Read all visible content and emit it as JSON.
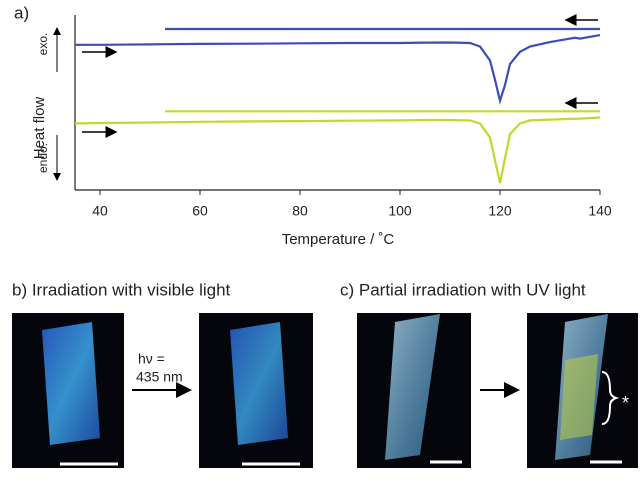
{
  "chart_data": {
    "type": "line",
    "panel_label": "a)",
    "x_label": "Temperature / ˚C",
    "y_label": "Heat flow",
    "annotations": [
      "exo.",
      "endo."
    ],
    "x": [
      35,
      40,
      50,
      53,
      60,
      70,
      80,
      90,
      100,
      105,
      110,
      114,
      116,
      118,
      119,
      120,
      121,
      122,
      124,
      126,
      130,
      134,
      135,
      136,
      140
    ],
    "series": [
      {
        "color": "#3b4fb3",
        "values": [
          null,
          null,
          null,
          92,
          92,
          92,
          92,
          92,
          92,
          92,
          92,
          92,
          92,
          92,
          92,
          92,
          92,
          92,
          92,
          92,
          92,
          92,
          92,
          92,
          92
        ]
      },
      {
        "color": "#3b4fb3",
        "values": [
          83,
          83,
          83.2,
          83.3,
          83.5,
          83.6,
          83.8,
          84,
          84,
          84.2,
          84.3,
          84,
          82,
          74,
          63,
          51,
          60,
          72,
          79,
          82,
          84.5,
          86.5,
          87,
          86.5,
          88.5
        ]
      },
      {
        "color": "#c5d62c",
        "values": [
          null,
          null,
          null,
          45,
          45,
          45,
          45,
          45,
          45,
          45,
          45,
          45,
          45,
          45,
          45,
          45,
          45,
          45,
          45,
          45,
          45,
          45,
          45,
          45,
          45
        ]
      },
      {
        "color": "#c5d62c",
        "values": [
          38,
          38.3,
          38.6,
          38.7,
          39,
          39.2,
          39.4,
          39.6,
          39.8,
          40,
          40,
          39.7,
          38,
          30,
          17,
          4,
          18,
          32,
          38,
          39.8,
          40.2,
          40.6,
          40.7,
          40.8,
          41.4
        ]
      }
    ],
    "xlim": [
      35,
      140
    ],
    "xticks": [
      40,
      60,
      80,
      100,
      120,
      140
    ],
    "ylim": [
      0,
      100
    ]
  },
  "panels": {
    "b_title": "b) Irradiation with visible light",
    "b_arrow_label": [
      "hν =",
      "435 nm"
    ],
    "c_title": "c) Partial irradiation with UV light",
    "c_marker": "*"
  }
}
